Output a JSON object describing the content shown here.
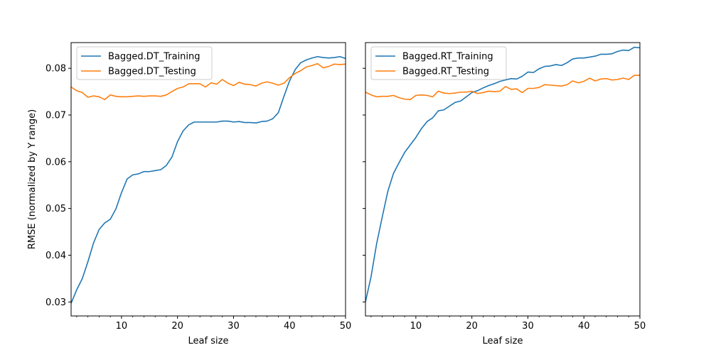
{
  "chart_data": [
    {
      "type": "line",
      "title": "",
      "xlabel": "Leaf size",
      "ylabel": "RMSE (normalized by Y range)",
      "xlim": [
        1,
        50
      ],
      "ylim": [
        0.027,
        0.0855
      ],
      "xticks": [
        10,
        20,
        30,
        40,
        50
      ],
      "yticks": [
        0.03,
        0.04,
        0.05,
        0.06,
        0.07,
        0.08
      ],
      "ytick_labels": [
        "0.03",
        "0.04",
        "0.05",
        "0.06",
        "0.07",
        "0.08"
      ],
      "grid": false,
      "legend": "top-left",
      "x": [
        1,
        2,
        3,
        4,
        5,
        6,
        7,
        8,
        9,
        10,
        11,
        12,
        13,
        14,
        15,
        16,
        17,
        18,
        19,
        20,
        21,
        22,
        23,
        24,
        25,
        26,
        27,
        28,
        29,
        30,
        31,
        32,
        33,
        34,
        35,
        36,
        37,
        38,
        39,
        40,
        41,
        42,
        43,
        44,
        45,
        46,
        47,
        48,
        49,
        50
      ],
      "series": [
        {
          "name": "Bagged.DT_Training",
          "color": "#1f77b4",
          "values": [
            0.0297,
            0.0326,
            0.035,
            0.0386,
            0.0426,
            0.0455,
            0.0469,
            0.0477,
            0.0499,
            0.0534,
            0.0563,
            0.0572,
            0.0574,
            0.0579,
            0.0579,
            0.0581,
            0.0583,
            0.0592,
            0.061,
            0.0643,
            0.0666,
            0.0679,
            0.0685,
            0.0685,
            0.0685,
            0.0685,
            0.0685,
            0.0687,
            0.0687,
            0.0685,
            0.0686,
            0.0684,
            0.0684,
            0.0683,
            0.0686,
            0.0687,
            0.0692,
            0.0705,
            0.074,
            0.0773,
            0.0797,
            0.0812,
            0.0818,
            0.0822,
            0.0825,
            0.0823,
            0.0822,
            0.0823,
            0.0825,
            0.0821
          ]
        },
        {
          "name": "Bagged.DT_Testing",
          "color": "#ff7f0e",
          "values": [
            0.076,
            0.0752,
            0.0748,
            0.0738,
            0.0741,
            0.0739,
            0.0733,
            0.0743,
            0.074,
            0.0739,
            0.0739,
            0.074,
            0.0741,
            0.074,
            0.0741,
            0.0741,
            0.074,
            0.0743,
            0.075,
            0.0757,
            0.076,
            0.0767,
            0.0767,
            0.0767,
            0.076,
            0.0769,
            0.0766,
            0.0776,
            0.0768,
            0.0763,
            0.077,
            0.0766,
            0.0765,
            0.0762,
            0.0768,
            0.0771,
            0.0768,
            0.0764,
            0.0768,
            0.078,
            0.0789,
            0.0795,
            0.0803,
            0.0806,
            0.081,
            0.0801,
            0.0804,
            0.0809,
            0.0808,
            0.0809
          ]
        }
      ]
    },
    {
      "type": "line",
      "title": "",
      "xlabel": "Leaf size",
      "ylabel": "",
      "xlim": [
        1,
        50
      ],
      "ylim": [
        0.027,
        0.0855
      ],
      "xticks": [
        10,
        20,
        30,
        40,
        50
      ],
      "yticks": [
        0.03,
        0.04,
        0.05,
        0.06,
        0.07,
        0.08
      ],
      "grid": false,
      "legend": "top-left",
      "x": [
        1,
        2,
        3,
        4,
        5,
        6,
        7,
        8,
        9,
        10,
        11,
        12,
        13,
        14,
        15,
        16,
        17,
        18,
        19,
        20,
        21,
        22,
        23,
        24,
        25,
        26,
        27,
        28,
        29,
        30,
        31,
        32,
        33,
        34,
        35,
        36,
        37,
        38,
        39,
        40,
        41,
        42,
        43,
        44,
        45,
        46,
        47,
        48,
        49,
        50
      ],
      "series": [
        {
          "name": "Bagged.RT_Training",
          "color": "#1f77b4",
          "values": [
            0.03,
            0.0354,
            0.0425,
            0.0482,
            0.0537,
            0.0575,
            0.0598,
            0.062,
            0.0636,
            0.0652,
            0.0671,
            0.0686,
            0.0694,
            0.0709,
            0.0711,
            0.0719,
            0.0727,
            0.073,
            0.0739,
            0.0748,
            0.0752,
            0.0758,
            0.0763,
            0.0767,
            0.0772,
            0.0775,
            0.0778,
            0.0777,
            0.0783,
            0.0792,
            0.0791,
            0.0799,
            0.0804,
            0.0805,
            0.0808,
            0.0806,
            0.0812,
            0.082,
            0.0822,
            0.0822,
            0.0824,
            0.0826,
            0.083,
            0.083,
            0.0831,
            0.0836,
            0.0839,
            0.0838,
            0.0845,
            0.0844
          ]
        },
        {
          "name": "Bagged.RT_Testing",
          "color": "#ff7f0e",
          "values": [
            0.0749,
            0.0743,
            0.0739,
            0.074,
            0.074,
            0.0742,
            0.0737,
            0.0734,
            0.0733,
            0.0742,
            0.0743,
            0.0742,
            0.0739,
            0.0751,
            0.0747,
            0.0746,
            0.0747,
            0.0749,
            0.0749,
            0.0751,
            0.0746,
            0.0748,
            0.0751,
            0.075,
            0.0751,
            0.0761,
            0.0755,
            0.0756,
            0.0748,
            0.0757,
            0.0757,
            0.0759,
            0.0765,
            0.0764,
            0.0763,
            0.0762,
            0.0765,
            0.0773,
            0.0769,
            0.0772,
            0.0779,
            0.0773,
            0.0777,
            0.0778,
            0.0775,
            0.0776,
            0.0779,
            0.0776,
            0.0785,
            0.0785
          ]
        }
      ]
    }
  ]
}
